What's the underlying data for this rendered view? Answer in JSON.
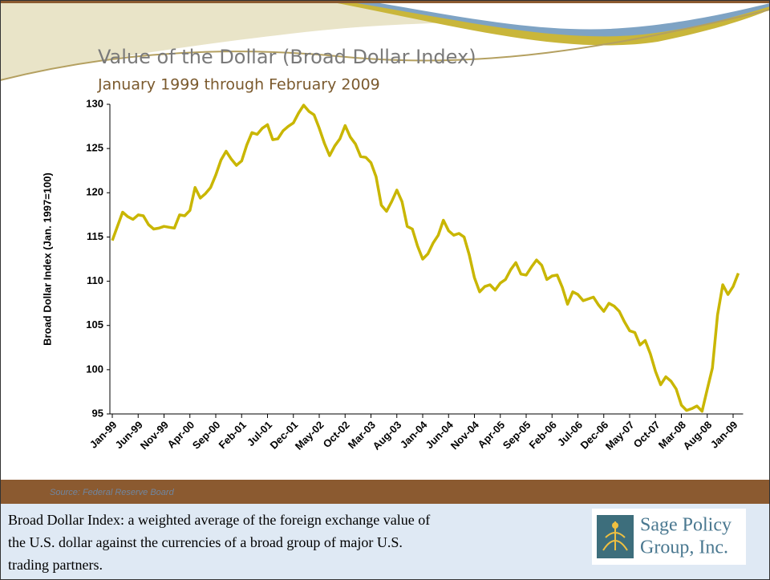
{
  "chart_data": {
    "type": "line",
    "title": "Value of the Dollar (Broad Dollar Index)",
    "subtitle": "January 1999 through February 2009",
    "y_label": "Broad Dollar Index (Jan. 1997=100)",
    "categories": [
      "Jan-99",
      null,
      null,
      null,
      null,
      "Jun-99",
      null,
      null,
      null,
      null,
      "Nov-99",
      null,
      null,
      null,
      null,
      "Apr-00",
      null,
      null,
      null,
      null,
      "Sep-00",
      null,
      null,
      null,
      null,
      "Feb-01",
      null,
      null,
      null,
      null,
      "Jul-01",
      null,
      null,
      null,
      null,
      "Dec-01",
      null,
      null,
      null,
      null,
      "May-02",
      null,
      null,
      null,
      null,
      "Oct-02",
      null,
      null,
      null,
      null,
      "Mar-03",
      null,
      null,
      null,
      null,
      "Aug-03",
      null,
      null,
      null,
      null,
      "Jan-04",
      null,
      null,
      null,
      null,
      "Jun-04",
      null,
      null,
      null,
      null,
      "Nov-04",
      null,
      null,
      null,
      null,
      "Apr-05",
      null,
      null,
      null,
      null,
      "Sep-05",
      null,
      null,
      null,
      null,
      "Feb-06",
      null,
      null,
      null,
      null,
      "Jul-06",
      null,
      null,
      null,
      null,
      "Dec-06",
      null,
      null,
      null,
      null,
      "May-07",
      null,
      null,
      null,
      null,
      "Oct-07",
      null,
      null,
      null,
      null,
      "Mar-08",
      null,
      null,
      null,
      null,
      "Aug-08",
      null,
      null,
      null,
      null,
      "Jan-09",
      null
    ],
    "values": [
      114.6,
      116.2,
      117.8,
      117.3,
      117.0,
      117.5,
      117.4,
      116.4,
      115.9,
      116.0,
      116.2,
      116.1,
      116.0,
      117.5,
      117.4,
      118.0,
      120.6,
      119.4,
      119.9,
      120.6,
      122.0,
      123.7,
      124.7,
      123.8,
      123.1,
      123.6,
      125.4,
      126.8,
      126.6,
      127.3,
      127.7,
      126.0,
      126.1,
      127.0,
      127.5,
      127.9,
      129.0,
      129.9,
      129.2,
      128.8,
      127.3,
      125.6,
      124.2,
      125.3,
      126.1,
      127.6,
      126.3,
      125.5,
      124.1,
      124.0,
      123.4,
      121.8,
      118.6,
      117.9,
      119.0,
      120.3,
      119.0,
      116.2,
      115.9,
      114.0,
      112.5,
      113.1,
      114.3,
      115.2,
      116.9,
      115.7,
      115.2,
      115.4,
      115.0,
      113.0,
      110.4,
      108.8,
      109.4,
      109.6,
      109.0,
      109.8,
      110.2,
      111.3,
      112.1,
      110.8,
      110.7,
      111.6,
      112.4,
      111.8,
      110.2,
      110.6,
      110.7,
      109.3,
      107.4,
      108.8,
      108.5,
      107.8,
      108.0,
      108.2,
      107.3,
      106.6,
      107.5,
      107.2,
      106.6,
      105.4,
      104.4,
      104.2,
      102.8,
      103.3,
      101.8,
      99.8,
      98.3,
      99.2,
      98.7,
      97.8,
      96.0,
      95.4,
      95.6,
      95.9,
      95.3,
      97.8,
      100.2,
      106.2,
      109.6,
      108.5,
      109.4,
      110.9
    ],
    "color": "#c9b600",
    "ylim": [
      95,
      130
    ],
    "yticks": [
      95,
      100,
      105,
      110,
      115,
      120,
      125,
      130
    ],
    "source": "Source:  Federal Reserve Board"
  },
  "footer": {
    "lines": [
      "Broad Dollar Index:  a weighted average of the foreign exchange value of",
      "the U.S. dollar against the currencies of a broad group of major U.S.",
      "trading partners."
    ],
    "logo": [
      "Sage Policy",
      "Group, Inc."
    ]
  }
}
